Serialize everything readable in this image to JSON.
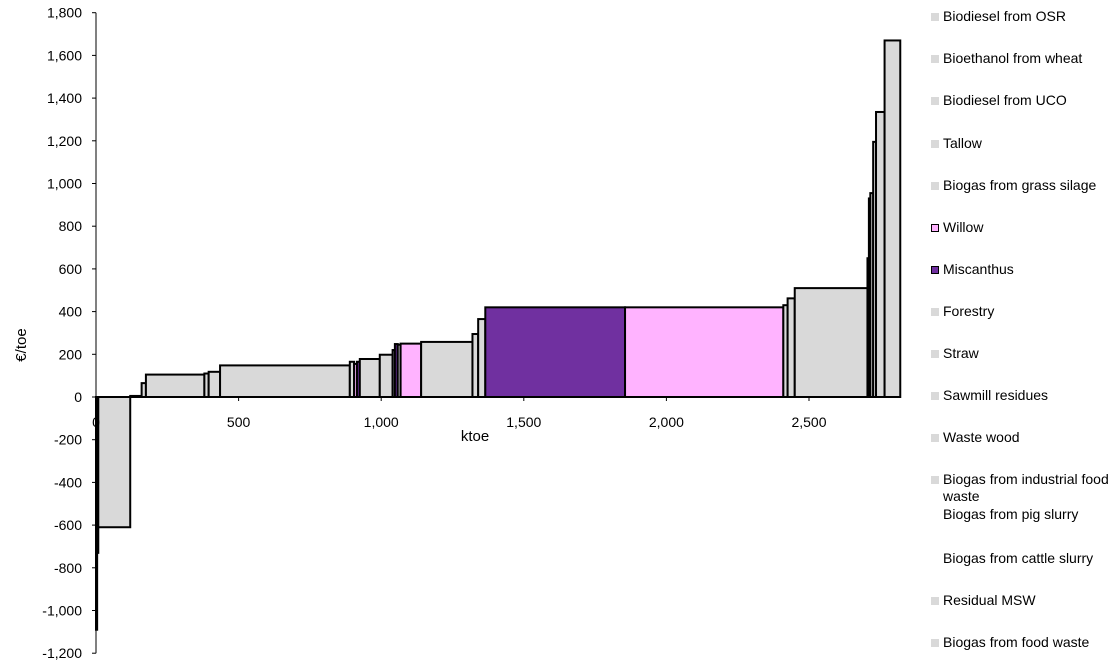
{
  "chart_data": {
    "type": "bar",
    "subtype": "supply-cost-curve (variable-width bars)",
    "title": "",
    "xlabel": "ktoe",
    "ylabel": "€/toe",
    "xlim": [
      0,
      2820
    ],
    "ylim": [
      -1200,
      1800
    ],
    "x_ticks": [
      "0",
      "500",
      "1,000",
      "1,500",
      "2,000",
      "2,500"
    ],
    "x_tick_values": [
      0,
      500,
      1000,
      1500,
      2000,
      2500
    ],
    "y_ticks": [
      "1,800",
      "1,600",
      "1,400",
      "1,200",
      "1,000",
      "800",
      "600",
      "400",
      "200",
      "0",
      "-200",
      "-400",
      "-600",
      "-800",
      "-1,000",
      "-1,200"
    ],
    "y_tick_values": [
      1800,
      1600,
      1400,
      1200,
      1000,
      800,
      600,
      400,
      200,
      0,
      -200,
      -400,
      -600,
      -800,
      -1000,
      -1200
    ],
    "colors": {
      "grey": "#d9d9d9",
      "willow": "#ffb3ff",
      "miscanthus": "#7030a0"
    },
    "bars": [
      {
        "x0": 0,
        "x1": 4,
        "value": -1090,
        "color": "grey"
      },
      {
        "x0": 4,
        "x1": 8,
        "value": -730,
        "color": "grey"
      },
      {
        "x0": 8,
        "x1": 120,
        "value": -610,
        "color": "grey"
      },
      {
        "x0": 120,
        "x1": 160,
        "value": 5,
        "color": "grey"
      },
      {
        "x0": 160,
        "x1": 175,
        "value": 65,
        "color": "grey"
      },
      {
        "x0": 175,
        "x1": 380,
        "value": 105,
        "color": "grey"
      },
      {
        "x0": 380,
        "x1": 395,
        "value": 110,
        "color": "grey"
      },
      {
        "x0": 395,
        "x1": 435,
        "value": 118,
        "color": "grey"
      },
      {
        "x0": 435,
        "x1": 890,
        "value": 148,
        "color": "grey"
      },
      {
        "x0": 890,
        "x1": 905,
        "value": 165,
        "color": "grey"
      },
      {
        "x0": 905,
        "x1": 915,
        "value": 155,
        "color": "willow"
      },
      {
        "x0": 915,
        "x1": 925,
        "value": 165,
        "color": "miscanthus"
      },
      {
        "x0": 925,
        "x1": 995,
        "value": 178,
        "color": "grey"
      },
      {
        "x0": 995,
        "x1": 1040,
        "value": 198,
        "color": "grey"
      },
      {
        "x0": 1040,
        "x1": 1048,
        "value": 220,
        "color": "grey"
      },
      {
        "x0": 1048,
        "x1": 1058,
        "value": 248,
        "color": "miscanthus"
      },
      {
        "x0": 1058,
        "x1": 1068,
        "value": 245,
        "color": "grey"
      },
      {
        "x0": 1068,
        "x1": 1140,
        "value": 250,
        "color": "willow"
      },
      {
        "x0": 1140,
        "x1": 1320,
        "value": 258,
        "color": "grey"
      },
      {
        "x0": 1320,
        "x1": 1340,
        "value": 295,
        "color": "grey"
      },
      {
        "x0": 1340,
        "x1": 1365,
        "value": 365,
        "color": "grey"
      },
      {
        "x0": 1365,
        "x1": 1855,
        "value": 420,
        "color": "miscanthus"
      },
      {
        "x0": 1855,
        "x1": 2410,
        "value": 420,
        "color": "willow"
      },
      {
        "x0": 2410,
        "x1": 2425,
        "value": 430,
        "color": "grey"
      },
      {
        "x0": 2425,
        "x1": 2450,
        "value": 462,
        "color": "grey"
      },
      {
        "x0": 2450,
        "x1": 2705,
        "value": 510,
        "color": "grey"
      },
      {
        "x0": 2705,
        "x1": 2710,
        "value": 650,
        "color": "grey"
      },
      {
        "x0": 2710,
        "x1": 2715,
        "value": 930,
        "color": "grey"
      },
      {
        "x0": 2715,
        "x1": 2725,
        "value": 955,
        "color": "grey"
      },
      {
        "x0": 2725,
        "x1": 2735,
        "value": 1195,
        "color": "grey"
      },
      {
        "x0": 2735,
        "x1": 2765,
        "value": 1335,
        "color": "grey"
      },
      {
        "x0": 2765,
        "x1": 2820,
        "value": 1670,
        "color": "grey"
      }
    ],
    "legend": {
      "placement": "right",
      "entries": [
        {
          "label": "Biodiesel from OSR",
          "color": "#d9d9d9"
        },
        {
          "label": "Bioethanol from wheat",
          "color": "#d9d9d9"
        },
        {
          "label": "Biodiesel from UCO",
          "color": "#d9d9d9"
        },
        {
          "label": "Tallow",
          "color": "#d9d9d9"
        },
        {
          "label": "Biogas from grass silage",
          "color": "#d9d9d9"
        },
        {
          "label": "Willow",
          "color": "#ffb3ff"
        },
        {
          "label": "Miscanthus",
          "color": "#7030a0"
        },
        {
          "label": "Forestry",
          "color": "#d9d9d9"
        },
        {
          "label": "Straw",
          "color": "#d9d9d9"
        },
        {
          "label": "Sawmill residues",
          "color": "#d9d9d9"
        },
        {
          "label": "Waste wood",
          "color": "#d9d9d9"
        },
        {
          "label": "Biogas from industrial food waste",
          "color": "#d9d9d9"
        },
        {
          "label": "Biogas from pig slurry",
          "color": ""
        },
        {
          "label": "Biogas from cattle slurry",
          "color": ""
        },
        {
          "label": "Residual MSW",
          "color": "#d9d9d9"
        },
        {
          "label": "Biogas from food waste",
          "color": "#d9d9d9"
        }
      ]
    }
  }
}
